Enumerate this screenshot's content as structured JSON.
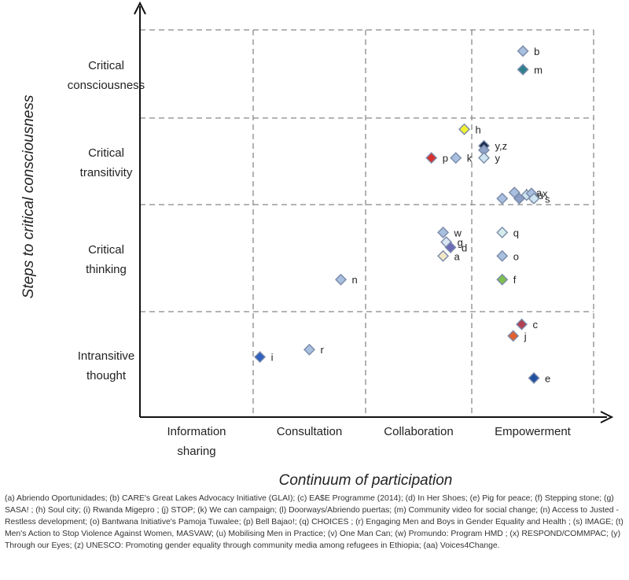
{
  "chart_data": {
    "type": "scatter",
    "xlabel": "Continuum of participation",
    "ylabel": "Steps to critical consciousness",
    "x_categories": [
      [
        "Information",
        "sharing"
      ],
      [
        "Consultation"
      ],
      [
        "Collaboration"
      ],
      [
        "Empowerment"
      ]
    ],
    "y_categories": [
      [
        "Intransitive",
        "thought"
      ],
      [
        "Critical",
        "thinking"
      ],
      [
        "Critical",
        "transitivity"
      ],
      [
        "Critical",
        "consciousness"
      ]
    ],
    "xlim": [
      0,
      4
    ],
    "ylim": [
      0,
      4
    ],
    "grid": "dashed",
    "points": [
      {
        "label": "b",
        "x": 3.42,
        "y": 3.76,
        "color": "#a9bfe0"
      },
      {
        "label": "m",
        "x": 3.42,
        "y": 3.55,
        "color": "#2f7f8f"
      },
      {
        "label": "h",
        "x": 2.93,
        "y": 2.87,
        "color": "#f2f230"
      },
      {
        "label": "y,z",
        "x": 3.1,
        "y": 2.68,
        "color": "#1a2a4a"
      },
      {
        "label": "",
        "x": 3.1,
        "y": 2.63,
        "color": "#8fa3c8"
      },
      {
        "label": "y",
        "x": 3.1,
        "y": 2.54,
        "color": "#cfe6f0"
      },
      {
        "label": "p",
        "x": 2.62,
        "y": 2.54,
        "color": "#d93030"
      },
      {
        "label": "k",
        "x": 2.85,
        "y": 2.54,
        "color": "#a9bfe0"
      },
      {
        "label": "l,aa",
        "x": 3.35,
        "y": 2.14,
        "color": "#a9bfe0"
      },
      {
        "label": "u",
        "x": 3.45,
        "y": 2.11,
        "color": "#cfe6f0"
      },
      {
        "label": "x",
        "x": 3.49,
        "y": 2.13,
        "color": "#a9bfe0"
      },
      {
        "label": "t",
        "x": 3.39,
        "y": 2.07,
        "color": "#8a9fc6"
      },
      {
        "label": "s",
        "x": 3.51,
        "y": 2.07,
        "color": "#cfe6f0"
      },
      {
        "label": "",
        "x": 3.25,
        "y": 2.07,
        "color": "#a9bfe0"
      },
      {
        "label": "w",
        "x": 2.73,
        "y": 1.74,
        "color": "#a9bfe0"
      },
      {
        "label": "g",
        "x": 2.76,
        "y": 1.65,
        "color": "#dbe6f4"
      },
      {
        "label": "d",
        "x": 2.8,
        "y": 1.6,
        "color": "#6c6cb8"
      },
      {
        "label": "a",
        "x": 2.73,
        "y": 1.52,
        "color": "#f2e6c6"
      },
      {
        "label": "q",
        "x": 3.25,
        "y": 1.74,
        "color": "#d6ecec"
      },
      {
        "label": "o",
        "x": 3.25,
        "y": 1.52,
        "color": "#a9bfe0"
      },
      {
        "label": "f",
        "x": 3.25,
        "y": 1.3,
        "color": "#7fbf4f"
      },
      {
        "label": "n",
        "x": 1.78,
        "y": 1.3,
        "color": "#a9bfe0"
      },
      {
        "label": "c",
        "x": 3.41,
        "y": 0.88,
        "color": "#b24050"
      },
      {
        "label": "j",
        "x": 3.34,
        "y": 0.77,
        "color": "#e06030"
      },
      {
        "label": "r",
        "x": 1.5,
        "y": 0.64,
        "color": "#a9bfe0"
      },
      {
        "label": "i",
        "x": 1.06,
        "y": 0.57,
        "color": "#3060c0"
      },
      {
        "label": "e",
        "x": 3.51,
        "y": 0.37,
        "color": "#2050a0"
      }
    ]
  },
  "caption": "(a) Abriendo Oportunidades; (b) CARE's Great Lakes Advocacy Initiative (GLAI); (c) EA$E Programme (2014); (d) In Her Shoes; (e) Pig for peace; (f) Stepping stone; (g) SASA! ; (h) Soul city; (i) Rwanda Migepro ; (j) STOP; (k) We can campaign; (l) Doorways/Abriendo puertas; (m) Community video for social change; (n) Access to Justed - Restless development; (o) Bantwana Initiative's Pamoja Tuwalee; (p) Bell Bajao!; (q) CHOICES ; (r) Engaging Men and Boys in Gender Equality and Health ; (s) IMAGE; (t) Men's Action to Stop Violence Against Women, MASVAW; (u) Mobilising Men in Practice; (v) One Man Can; (w) Promundo: Program HMD ; (x) RESPOND/COMMPAC; (y) Through our Eyes; (z) UNESCO: Promoting gender equality through community media among refugees in Ethiopia; (aa) Voices4Change."
}
